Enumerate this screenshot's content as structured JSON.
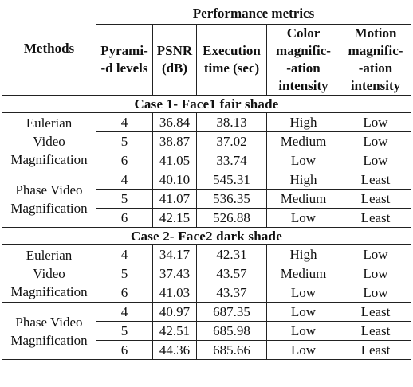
{
  "table": {
    "columns": {
      "methods": "Methods",
      "group": "Performance metrics",
      "pyramid": [
        "Pyrami-",
        "-d levels"
      ],
      "psnr": [
        "PSNR",
        "(dB)"
      ],
      "execution": [
        "Execution",
        "time (sec)"
      ],
      "color": [
        "Color",
        "magnific-",
        "-ation",
        "intensity"
      ],
      "motion": [
        "Motion",
        "magnific-",
        "-ation",
        "intensity"
      ]
    },
    "cases": [
      {
        "title": "Case 1- Face1 fair shade",
        "methods": [
          {
            "name": [
              "Eulerian",
              "Video",
              "Magnification"
            ],
            "rows": [
              {
                "levels": "4",
                "psnr": "36.84",
                "time": "38.13",
                "color": "High",
                "motion": "Low"
              },
              {
                "levels": "5",
                "psnr": "38.87",
                "time": "37.02",
                "color": "Medium",
                "motion": "Low"
              },
              {
                "levels": "6",
                "psnr": "41.05",
                "time": "33.74",
                "color": "Low",
                "motion": "Low"
              }
            ]
          },
          {
            "name": [
              "Phase Video",
              "Magnification"
            ],
            "rows": [
              {
                "levels": "4",
                "psnr": "40.10",
                "time": "545.31",
                "color": "High",
                "motion": "Least"
              },
              {
                "levels": "5",
                "psnr": "41.07",
                "time": "536.35",
                "color": "Medium",
                "motion": "Least"
              },
              {
                "levels": "6",
                "psnr": "42.15",
                "time": "526.88",
                "color": "Low",
                "motion": "Least"
              }
            ]
          }
        ]
      },
      {
        "title": "Case 2- Face2 dark shade",
        "methods": [
          {
            "name": [
              "Eulerian",
              "Video",
              "Magnification"
            ],
            "rows": [
              {
                "levels": "4",
                "psnr": "34.17",
                "time": "42.31",
                "color": "High",
                "motion": "Low"
              },
              {
                "levels": "5",
                "psnr": "37.43",
                "time": "43.57",
                "color": "Medium",
                "motion": "Low"
              },
              {
                "levels": "6",
                "psnr": "41.03",
                "time": "43.37",
                "color": "Low",
                "motion": "Low"
              }
            ]
          },
          {
            "name": [
              "Phase Video",
              "Magnification"
            ],
            "rows": [
              {
                "levels": "4",
                "psnr": "40.97",
                "time": "687.35",
                "color": "Low",
                "motion": "Least"
              },
              {
                "levels": "5",
                "psnr": "42.51",
                "time": "685.98",
                "color": "Low",
                "motion": "Least"
              },
              {
                "levels": "6",
                "psnr": "44.36",
                "time": "685.66",
                "color": "Low",
                "motion": "Least"
              }
            ]
          }
        ]
      }
    ]
  }
}
